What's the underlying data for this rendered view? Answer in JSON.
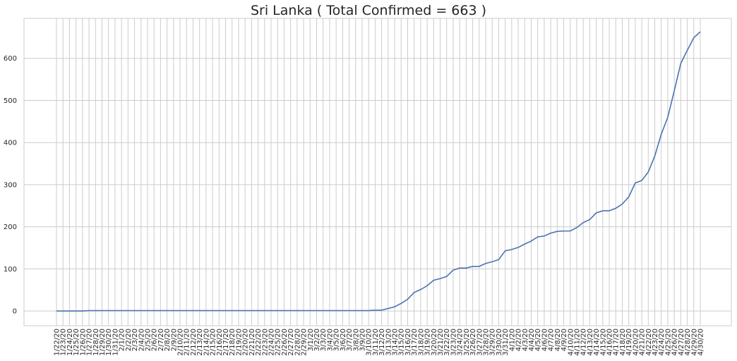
{
  "chart_data": {
    "type": "line",
    "title": "Sri Lanka ( Total Confirmed = 663 )",
    "xlabel": "",
    "ylabel": "",
    "x": [
      "1/22/20",
      "1/23/20",
      "1/24/20",
      "1/25/20",
      "1/26/20",
      "1/27/20",
      "1/28/20",
      "1/29/20",
      "1/30/20",
      "1/31/20",
      "2/1/20",
      "2/2/20",
      "2/3/20",
      "2/4/20",
      "2/5/20",
      "2/6/20",
      "2/7/20",
      "2/8/20",
      "2/9/20",
      "2/10/20",
      "2/11/20",
      "2/12/20",
      "2/13/20",
      "2/14/20",
      "2/15/20",
      "2/16/20",
      "2/17/20",
      "2/18/20",
      "2/19/20",
      "2/20/20",
      "2/21/20",
      "2/22/20",
      "2/23/20",
      "2/24/20",
      "2/25/20",
      "2/26/20",
      "2/27/20",
      "2/28/20",
      "2/29/20",
      "3/1/20",
      "3/2/20",
      "3/3/20",
      "3/4/20",
      "3/5/20",
      "3/6/20",
      "3/7/20",
      "3/8/20",
      "3/9/20",
      "3/10/20",
      "3/11/20",
      "3/12/20",
      "3/13/20",
      "3/14/20",
      "3/15/20",
      "3/16/20",
      "3/17/20",
      "3/18/20",
      "3/19/20",
      "3/20/20",
      "3/21/20",
      "3/22/20",
      "3/23/20",
      "3/24/20",
      "3/25/20",
      "3/26/20",
      "3/27/20",
      "3/28/20",
      "3/29/20",
      "3/30/20",
      "3/31/20",
      "4/1/20",
      "4/2/20",
      "4/3/20",
      "4/4/20",
      "4/5/20",
      "4/6/20",
      "4/7/20",
      "4/8/20",
      "4/9/20",
      "4/10/20",
      "4/11/20",
      "4/12/20",
      "4/13/20",
      "4/14/20",
      "4/15/20",
      "4/16/20",
      "4/17/20",
      "4/18/20",
      "4/19/20",
      "4/20/20",
      "4/21/20",
      "4/22/20",
      "4/23/20",
      "4/24/20",
      "4/25/20",
      "4/26/20",
      "4/27/20",
      "4/28/20",
      "4/29/20",
      "4/30/20"
    ],
    "series": [
      {
        "values": [
          0,
          0,
          0,
          0,
          0,
          1,
          1,
          1,
          1,
          1,
          1,
          1,
          1,
          1,
          1,
          1,
          1,
          1,
          1,
          1,
          1,
          1,
          1,
          1,
          1,
          1,
          1,
          1,
          1,
          1,
          1,
          1,
          1,
          1,
          1,
          1,
          1,
          1,
          1,
          1,
          1,
          1,
          1,
          1,
          1,
          1,
          1,
          1,
          1,
          2,
          2,
          6,
          10,
          18,
          28,
          44,
          51,
          60,
          73,
          77,
          82,
          97,
          102,
          102,
          106,
          106,
          113,
          117,
          122,
          143,
          146,
          151,
          159,
          166,
          176,
          178,
          185,
          189,
          190,
          190,
          198,
          210,
          217,
          233,
          238,
          238,
          244,
          254,
          271,
          304,
          310,
          330,
          368,
          420,
          460,
          523,
          588,
          619,
          649,
          663
        ],
        "color": "#4c72b0"
      }
    ],
    "ylim": [
      -35,
      695
    ],
    "yticks": [
      0,
      100,
      200,
      300,
      400,
      500,
      600
    ],
    "grid": true,
    "background": "#ffffff",
    "grid_color": "#cccccc"
  }
}
